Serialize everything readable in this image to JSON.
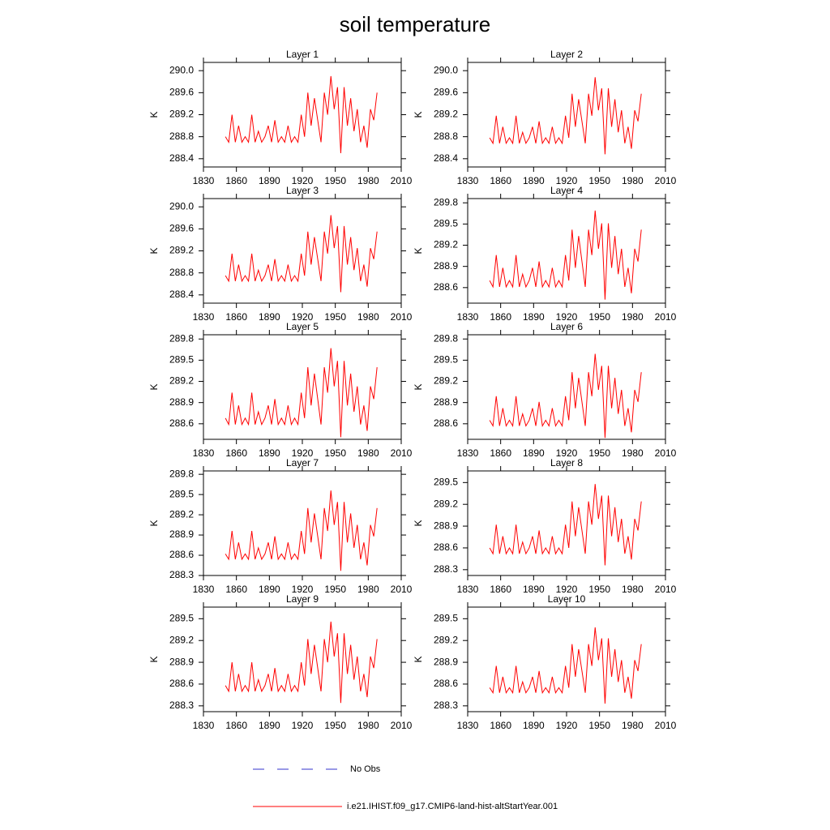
{
  "title": "soil temperature",
  "legend": [
    {
      "name": "No Obs",
      "color": "#3333cc",
      "dashed": true
    },
    {
      "name": "i.e21.IHIST.f09_g17.CMIP6-land-hist-altStartYear.001",
      "color": "#ff0000",
      "dashed": false
    }
  ],
  "chart_data": [
    {
      "type": "line",
      "title": "Layer 1",
      "y_label": "K",
      "color": "#ff0000",
      "xlim": [
        1830,
        2010
      ],
      "xticks": [
        1830,
        1860,
        1890,
        1920,
        1950,
        1980,
        2010
      ],
      "ylim": [
        288.25,
        290.15
      ],
      "yticks": [
        288.4,
        288.8,
        289.2,
        289.6,
        {
          "value": 290,
          "label": "290.0"
        }
      ],
      "x": [
        1850,
        1853,
        1856,
        1859,
        1862,
        1865,
        1868,
        1871,
        1874,
        1877,
        1880,
        1883,
        1886,
        1889,
        1892,
        1895,
        1898,
        1901,
        1904,
        1907,
        1910,
        1913,
        1916,
        1919,
        1922,
        1925,
        1928,
        1931,
        1934,
        1937,
        1940,
        1943,
        1946,
        1949,
        1952,
        1955,
        1958,
        1961,
        1964,
        1967,
        1970,
        1973,
        1976,
        1979,
        1982,
        1985,
        1988
      ],
      "values": [
        288.8,
        288.7,
        289.2,
        288.7,
        289.0,
        288.7,
        288.8,
        288.7,
        289.2,
        288.7,
        288.9,
        288.7,
        288.8,
        289.0,
        288.7,
        289.1,
        288.7,
        288.8,
        288.7,
        289.0,
        288.7,
        288.8,
        288.7,
        289.2,
        288.8,
        289.6,
        289.0,
        289.5,
        289.1,
        288.7,
        289.6,
        289.2,
        289.9,
        289.3,
        289.7,
        288.5,
        289.7,
        289.0,
        289.5,
        288.9,
        289.3,
        288.7,
        289.0,
        288.6,
        289.3,
        289.1,
        289.6
      ]
    },
    {
      "type": "line",
      "title": "Layer 2",
      "y_label": "K",
      "color": "#ff0000",
      "xlim": [
        1830,
        2010
      ],
      "xticks": [
        1830,
        1860,
        1890,
        1920,
        1950,
        1980,
        2010
      ],
      "ylim": [
        288.25,
        290.15
      ],
      "yticks": [
        288.4,
        288.8,
        289.2,
        289.6,
        {
          "value": 290,
          "label": "290.0"
        }
      ],
      "x": [
        1850,
        1853,
        1856,
        1859,
        1862,
        1865,
        1868,
        1871,
        1874,
        1877,
        1880,
        1883,
        1886,
        1889,
        1892,
        1895,
        1898,
        1901,
        1904,
        1907,
        1910,
        1913,
        1916,
        1919,
        1922,
        1925,
        1928,
        1931,
        1934,
        1937,
        1940,
        1943,
        1946,
        1949,
        1952,
        1955,
        1958,
        1961,
        1964,
        1967,
        1970,
        1973,
        1976,
        1979,
        1982,
        1985,
        1988
      ],
      "values": [
        288.78,
        288.68,
        289.18,
        288.68,
        288.98,
        288.68,
        288.78,
        288.68,
        289.18,
        288.68,
        288.88,
        288.68,
        288.78,
        288.98,
        288.68,
        289.08,
        288.68,
        288.78,
        288.68,
        288.98,
        288.68,
        288.78,
        288.68,
        289.18,
        288.78,
        289.58,
        288.98,
        289.48,
        289.08,
        288.68,
        289.58,
        289.18,
        289.88,
        289.28,
        289.68,
        288.48,
        289.68,
        288.98,
        289.48,
        288.88,
        289.28,
        288.68,
        288.98,
        288.58,
        289.28,
        289.08,
        289.58
      ]
    },
    {
      "type": "line",
      "title": "Layer 3",
      "y_label": "K",
      "color": "#ff0000",
      "xlim": [
        1830,
        2010
      ],
      "xticks": [
        1830,
        1860,
        1890,
        1920,
        1950,
        1980,
        2010
      ],
      "ylim": [
        288.25,
        290.15
      ],
      "yticks": [
        288.4,
        288.8,
        289.2,
        289.6,
        {
          "value": 290,
          "label": "290.0"
        }
      ],
      "x": [
        1850,
        1853,
        1856,
        1859,
        1862,
        1865,
        1868,
        1871,
        1874,
        1877,
        1880,
        1883,
        1886,
        1889,
        1892,
        1895,
        1898,
        1901,
        1904,
        1907,
        1910,
        1913,
        1916,
        1919,
        1922,
        1925,
        1928,
        1931,
        1934,
        1937,
        1940,
        1943,
        1946,
        1949,
        1952,
        1955,
        1958,
        1961,
        1964,
        1967,
        1970,
        1973,
        1976,
        1979,
        1982,
        1985,
        1988
      ],
      "values": [
        288.75,
        288.65,
        289.15,
        288.65,
        288.95,
        288.65,
        288.75,
        288.65,
        289.15,
        288.65,
        288.85,
        288.65,
        288.75,
        288.95,
        288.65,
        289.05,
        288.65,
        288.75,
        288.65,
        288.95,
        288.65,
        288.75,
        288.65,
        289.15,
        288.75,
        289.55,
        288.95,
        289.45,
        289.05,
        288.65,
        289.55,
        289.15,
        289.85,
        289.25,
        289.65,
        288.45,
        289.65,
        288.95,
        289.45,
        288.85,
        289.25,
        288.65,
        288.95,
        288.55,
        289.25,
        289.05,
        289.55
      ]
    },
    {
      "type": "line",
      "title": "Layer 4",
      "y_label": "K",
      "color": "#ff0000",
      "xlim": [
        1830,
        2010
      ],
      "xticks": [
        1830,
        1860,
        1890,
        1920,
        1950,
        1980,
        2010
      ],
      "ylim": [
        288.38,
        289.86
      ],
      "yticks": [
        288.6,
        288.9,
        289.2,
        289.5,
        289.8
      ],
      "x": [
        1850,
        1853,
        1856,
        1859,
        1862,
        1865,
        1868,
        1871,
        1874,
        1877,
        1880,
        1883,
        1886,
        1889,
        1892,
        1895,
        1898,
        1901,
        1904,
        1907,
        1910,
        1913,
        1916,
        1919,
        1922,
        1925,
        1928,
        1931,
        1934,
        1937,
        1940,
        1943,
        1946,
        1949,
        1952,
        1955,
        1958,
        1961,
        1964,
        1967,
        1970,
        1973,
        1976,
        1979,
        1982,
        1985,
        1988
      ],
      "values": [
        288.7,
        288.61,
        289.06,
        288.61,
        288.88,
        288.61,
        288.7,
        288.61,
        289.06,
        288.61,
        288.79,
        288.61,
        288.7,
        288.88,
        288.61,
        288.97,
        288.61,
        288.7,
        288.61,
        288.88,
        288.61,
        288.7,
        288.61,
        289.06,
        288.7,
        289.42,
        288.88,
        289.33,
        288.97,
        288.61,
        289.42,
        289.06,
        289.69,
        289.15,
        289.51,
        288.43,
        289.51,
        288.88,
        289.33,
        288.79,
        289.15,
        288.61,
        288.88,
        288.52,
        289.15,
        288.97,
        289.42
      ]
    },
    {
      "type": "line",
      "title": "Layer 5",
      "y_label": "K",
      "color": "#ff0000",
      "xlim": [
        1830,
        2010
      ],
      "xticks": [
        1830,
        1860,
        1890,
        1920,
        1950,
        1980,
        2010
      ],
      "ylim": [
        288.38,
        289.86
      ],
      "yticks": [
        288.6,
        288.9,
        289.2,
        289.5,
        289.8
      ],
      "x": [
        1850,
        1853,
        1856,
        1859,
        1862,
        1865,
        1868,
        1871,
        1874,
        1877,
        1880,
        1883,
        1886,
        1889,
        1892,
        1895,
        1898,
        1901,
        1904,
        1907,
        1910,
        1913,
        1916,
        1919,
        1922,
        1925,
        1928,
        1931,
        1934,
        1937,
        1940,
        1943,
        1946,
        1949,
        1952,
        1955,
        1958,
        1961,
        1964,
        1967,
        1970,
        1973,
        1976,
        1979,
        1982,
        1985,
        1988
      ],
      "values": [
        288.68,
        288.59,
        289.04,
        288.59,
        288.86,
        288.59,
        288.68,
        288.59,
        289.04,
        288.59,
        288.77,
        288.59,
        288.68,
        288.86,
        288.59,
        288.95,
        288.59,
        288.68,
        288.59,
        288.86,
        288.59,
        288.68,
        288.59,
        289.04,
        288.68,
        289.4,
        288.86,
        289.31,
        288.95,
        288.59,
        289.4,
        289.04,
        289.67,
        289.13,
        289.49,
        288.41,
        289.49,
        288.86,
        289.31,
        288.77,
        289.13,
        288.59,
        288.86,
        288.5,
        289.13,
        288.95,
        289.4
      ]
    },
    {
      "type": "line",
      "title": "Layer 6",
      "y_label": "K",
      "color": "#ff0000",
      "xlim": [
        1830,
        2010
      ],
      "xticks": [
        1830,
        1860,
        1890,
        1920,
        1950,
        1980,
        2010
      ],
      "ylim": [
        288.38,
        289.86
      ],
      "yticks": [
        288.6,
        288.9,
        289.2,
        289.5,
        289.8
      ],
      "x": [
        1850,
        1853,
        1856,
        1859,
        1862,
        1865,
        1868,
        1871,
        1874,
        1877,
        1880,
        1883,
        1886,
        1889,
        1892,
        1895,
        1898,
        1901,
        1904,
        1907,
        1910,
        1913,
        1916,
        1919,
        1922,
        1925,
        1928,
        1931,
        1934,
        1937,
        1940,
        1943,
        1946,
        1949,
        1952,
        1955,
        1958,
        1961,
        1964,
        1967,
        1970,
        1973,
        1976,
        1979,
        1982,
        1985,
        1988
      ],
      "values": [
        288.65,
        288.57,
        288.99,
        288.57,
        288.82,
        288.57,
        288.65,
        288.57,
        288.99,
        288.57,
        288.74,
        288.57,
        288.65,
        288.82,
        288.57,
        288.91,
        288.57,
        288.65,
        288.57,
        288.82,
        288.57,
        288.65,
        288.57,
        288.99,
        288.65,
        289.33,
        288.82,
        289.25,
        288.91,
        288.57,
        289.33,
        288.99,
        289.59,
        289.08,
        289.42,
        288.4,
        289.42,
        288.82,
        289.25,
        288.74,
        289.08,
        288.57,
        288.82,
        288.48,
        289.08,
        288.91,
        289.33
      ]
    },
    {
      "type": "line",
      "title": "Layer 7",
      "y_label": "K",
      "color": "#ff0000",
      "xlim": [
        1830,
        2010
      ],
      "xticks": [
        1830,
        1860,
        1890,
        1920,
        1950,
        1980,
        2010
      ],
      "ylim": [
        288.3,
        289.85
      ],
      "yticks": [
        288.3,
        288.6,
        288.9,
        289.2,
        289.5,
        289.8
      ],
      "x": [
        1850,
        1853,
        1856,
        1859,
        1862,
        1865,
        1868,
        1871,
        1874,
        1877,
        1880,
        1883,
        1886,
        1889,
        1892,
        1895,
        1898,
        1901,
        1904,
        1907,
        1910,
        1913,
        1916,
        1919,
        1922,
        1925,
        1928,
        1931,
        1934,
        1937,
        1940,
        1943,
        1946,
        1949,
        1952,
        1955,
        1958,
        1961,
        1964,
        1967,
        1970,
        1973,
        1976,
        1979,
        1982,
        1985,
        1988
      ],
      "values": [
        288.62,
        288.54,
        288.96,
        288.54,
        288.79,
        288.54,
        288.62,
        288.54,
        288.96,
        288.54,
        288.71,
        288.54,
        288.62,
        288.79,
        288.54,
        288.88,
        288.54,
        288.62,
        288.54,
        288.79,
        288.54,
        288.62,
        288.54,
        288.96,
        288.62,
        289.3,
        288.79,
        289.22,
        288.88,
        288.54,
        289.3,
        288.96,
        289.56,
        289.05,
        289.39,
        288.37,
        289.39,
        288.79,
        289.22,
        288.71,
        289.05,
        288.54,
        288.79,
        288.45,
        289.05,
        288.88,
        289.3
      ]
    },
    {
      "type": "line",
      "title": "Layer 8",
      "y_label": "K",
      "color": "#ff0000",
      "xlim": [
        1830,
        2010
      ],
      "xticks": [
        1830,
        1860,
        1890,
        1920,
        1950,
        1980,
        2010
      ],
      "ylim": [
        288.22,
        289.66
      ],
      "yticks": [
        288.3,
        288.6,
        288.9,
        289.2,
        289.5
      ],
      "x": [
        1850,
        1853,
        1856,
        1859,
        1862,
        1865,
        1868,
        1871,
        1874,
        1877,
        1880,
        1883,
        1886,
        1889,
        1892,
        1895,
        1898,
        1901,
        1904,
        1907,
        1910,
        1913,
        1916,
        1919,
        1922,
        1925,
        1928,
        1931,
        1934,
        1937,
        1940,
        1943,
        1946,
        1949,
        1952,
        1955,
        1958,
        1961,
        1964,
        1967,
        1970,
        1973,
        1976,
        1979,
        1982,
        1985,
        1988
      ],
      "values": [
        288.6,
        288.52,
        288.92,
        288.52,
        288.76,
        288.52,
        288.6,
        288.52,
        288.92,
        288.52,
        288.68,
        288.52,
        288.6,
        288.76,
        288.52,
        288.84,
        288.52,
        288.6,
        288.52,
        288.76,
        288.52,
        288.6,
        288.52,
        288.92,
        288.6,
        289.24,
        288.76,
        289.16,
        288.84,
        288.52,
        289.24,
        288.92,
        289.48,
        289,
        289.32,
        288.36,
        289.32,
        288.76,
        289.16,
        288.68,
        289,
        288.52,
        288.76,
        288.44,
        289,
        288.84,
        289.24
      ]
    },
    {
      "type": "line",
      "title": "Layer 9",
      "y_label": "K",
      "color": "#ff0000",
      "xlim": [
        1830,
        2010
      ],
      "xticks": [
        1830,
        1860,
        1890,
        1920,
        1950,
        1980,
        2010
      ],
      "ylim": [
        288.22,
        289.66
      ],
      "yticks": [
        288.3,
        288.6,
        288.9,
        289.2,
        289.5
      ],
      "x": [
        1850,
        1853,
        1856,
        1859,
        1862,
        1865,
        1868,
        1871,
        1874,
        1877,
        1880,
        1883,
        1886,
        1889,
        1892,
        1895,
        1898,
        1901,
        1904,
        1907,
        1910,
        1913,
        1916,
        1919,
        1922,
        1925,
        1928,
        1931,
        1934,
        1937,
        1940,
        1943,
        1946,
        1949,
        1952,
        1955,
        1958,
        1961,
        1964,
        1967,
        1970,
        1973,
        1976,
        1979,
        1982,
        1985,
        1988
      ],
      "values": [
        288.58,
        288.5,
        288.9,
        288.5,
        288.74,
        288.5,
        288.58,
        288.5,
        288.9,
        288.5,
        288.66,
        288.5,
        288.58,
        288.74,
        288.5,
        288.82,
        288.5,
        288.58,
        288.5,
        288.74,
        288.5,
        288.58,
        288.5,
        288.9,
        288.58,
        289.22,
        288.74,
        289.14,
        288.82,
        288.5,
        289.22,
        288.9,
        289.46,
        288.98,
        289.3,
        288.34,
        289.3,
        288.74,
        289.14,
        288.66,
        288.98,
        288.5,
        288.74,
        288.42,
        288.98,
        288.82,
        289.22
      ]
    },
    {
      "type": "line",
      "title": "Layer 10",
      "y_label": "K",
      "color": "#ff0000",
      "xlim": [
        1830,
        2010
      ],
      "xticks": [
        1830,
        1860,
        1890,
        1920,
        1950,
        1980,
        2010
      ],
      "ylim": [
        288.22,
        289.66
      ],
      "yticks": [
        288.3,
        288.6,
        288.9,
        289.2,
        289.5
      ],
      "x": [
        1850,
        1853,
        1856,
        1859,
        1862,
        1865,
        1868,
        1871,
        1874,
        1877,
        1880,
        1883,
        1886,
        1889,
        1892,
        1895,
        1898,
        1901,
        1904,
        1907,
        1910,
        1913,
        1916,
        1919,
        1922,
        1925,
        1928,
        1931,
        1934,
        1937,
        1940,
        1943,
        1946,
        1949,
        1952,
        1955,
        1958,
        1961,
        1964,
        1967,
        1970,
        1973,
        1976,
        1979,
        1982,
        1985,
        1988
      ],
      "values": [
        288.55,
        288.48,
        288.85,
        288.48,
        288.7,
        288.48,
        288.55,
        288.48,
        288.85,
        288.48,
        288.63,
        288.48,
        288.55,
        288.7,
        288.48,
        288.78,
        288.48,
        288.55,
        288.48,
        288.7,
        288.48,
        288.55,
        288.48,
        288.85,
        288.55,
        289.15,
        288.7,
        289.08,
        288.78,
        288.48,
        289.15,
        288.85,
        289.38,
        288.93,
        289.23,
        288.33,
        289.23,
        288.7,
        289.08,
        288.63,
        288.93,
        288.48,
        288.7,
        288.4,
        288.93,
        288.78,
        289.15
      ]
    }
  ]
}
